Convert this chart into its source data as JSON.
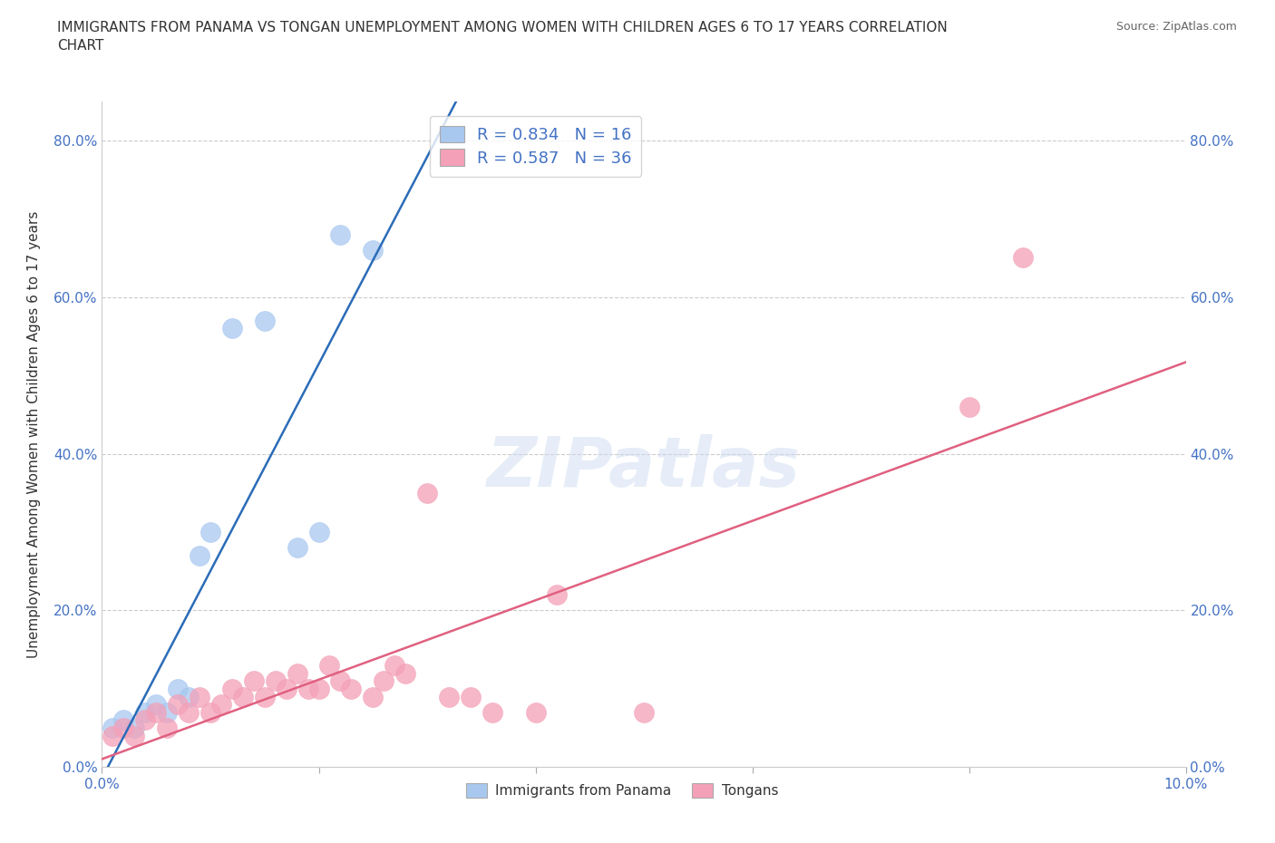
{
  "title": "IMMIGRANTS FROM PANAMA VS TONGAN UNEMPLOYMENT AMONG WOMEN WITH CHILDREN AGES 6 TO 17 YEARS CORRELATION\nCHART",
  "source": "Source: ZipAtlas.com",
  "ylabel": "Unemployment Among Women with Children Ages 6 to 17 years",
  "xlim": [
    0,
    0.1
  ],
  "ylim": [
    0,
    0.85
  ],
  "yticks": [
    0.0,
    0.2,
    0.4,
    0.6,
    0.8
  ],
  "ytick_labels": [
    "0.0%",
    "20.0%",
    "40.0%",
    "60.0%",
    "80.0%"
  ],
  "xticks": [
    0.0,
    0.02,
    0.04,
    0.06,
    0.08,
    0.1
  ],
  "xtick_labels": [
    "0.0%",
    "",
    "",
    "",
    "",
    "10.0%"
  ],
  "panama_color": "#A8C8F0",
  "tongan_color": "#F4A0B8",
  "line_panama_color": "#2B6CB8",
  "line_tongan_color": "#E06080",
  "R_panama": 0.834,
  "N_panama": 16,
  "R_tongan": 0.587,
  "N_tongan": 36,
  "watermark": "ZIPatlas",
  "panama_x": [
    0.001,
    0.002,
    0.003,
    0.004,
    0.005,
    0.006,
    0.007,
    0.008,
    0.009,
    0.01,
    0.012,
    0.015,
    0.018,
    0.02,
    0.022,
    0.025
  ],
  "panama_y": [
    0.05,
    0.06,
    0.05,
    0.07,
    0.08,
    0.07,
    0.1,
    0.09,
    0.27,
    0.3,
    0.56,
    0.57,
    0.28,
    0.3,
    0.68,
    0.66
  ],
  "tongan_x": [
    0.001,
    0.002,
    0.003,
    0.004,
    0.005,
    0.006,
    0.007,
    0.008,
    0.009,
    0.01,
    0.011,
    0.012,
    0.013,
    0.014,
    0.015,
    0.016,
    0.017,
    0.018,
    0.019,
    0.02,
    0.021,
    0.022,
    0.023,
    0.025,
    0.026,
    0.027,
    0.028,
    0.03,
    0.032,
    0.034,
    0.036,
    0.04,
    0.042,
    0.05,
    0.08,
    0.085
  ],
  "tongan_y": [
    0.04,
    0.05,
    0.04,
    0.06,
    0.07,
    0.05,
    0.08,
    0.07,
    0.09,
    0.07,
    0.08,
    0.1,
    0.09,
    0.11,
    0.09,
    0.11,
    0.1,
    0.12,
    0.1,
    0.1,
    0.13,
    0.11,
    0.1,
    0.09,
    0.11,
    0.13,
    0.12,
    0.35,
    0.09,
    0.09,
    0.07,
    0.07,
    0.22,
    0.07,
    0.46,
    0.65
  ],
  "legend_text_color": "#4472C4",
  "tick_color": "#4472C4"
}
